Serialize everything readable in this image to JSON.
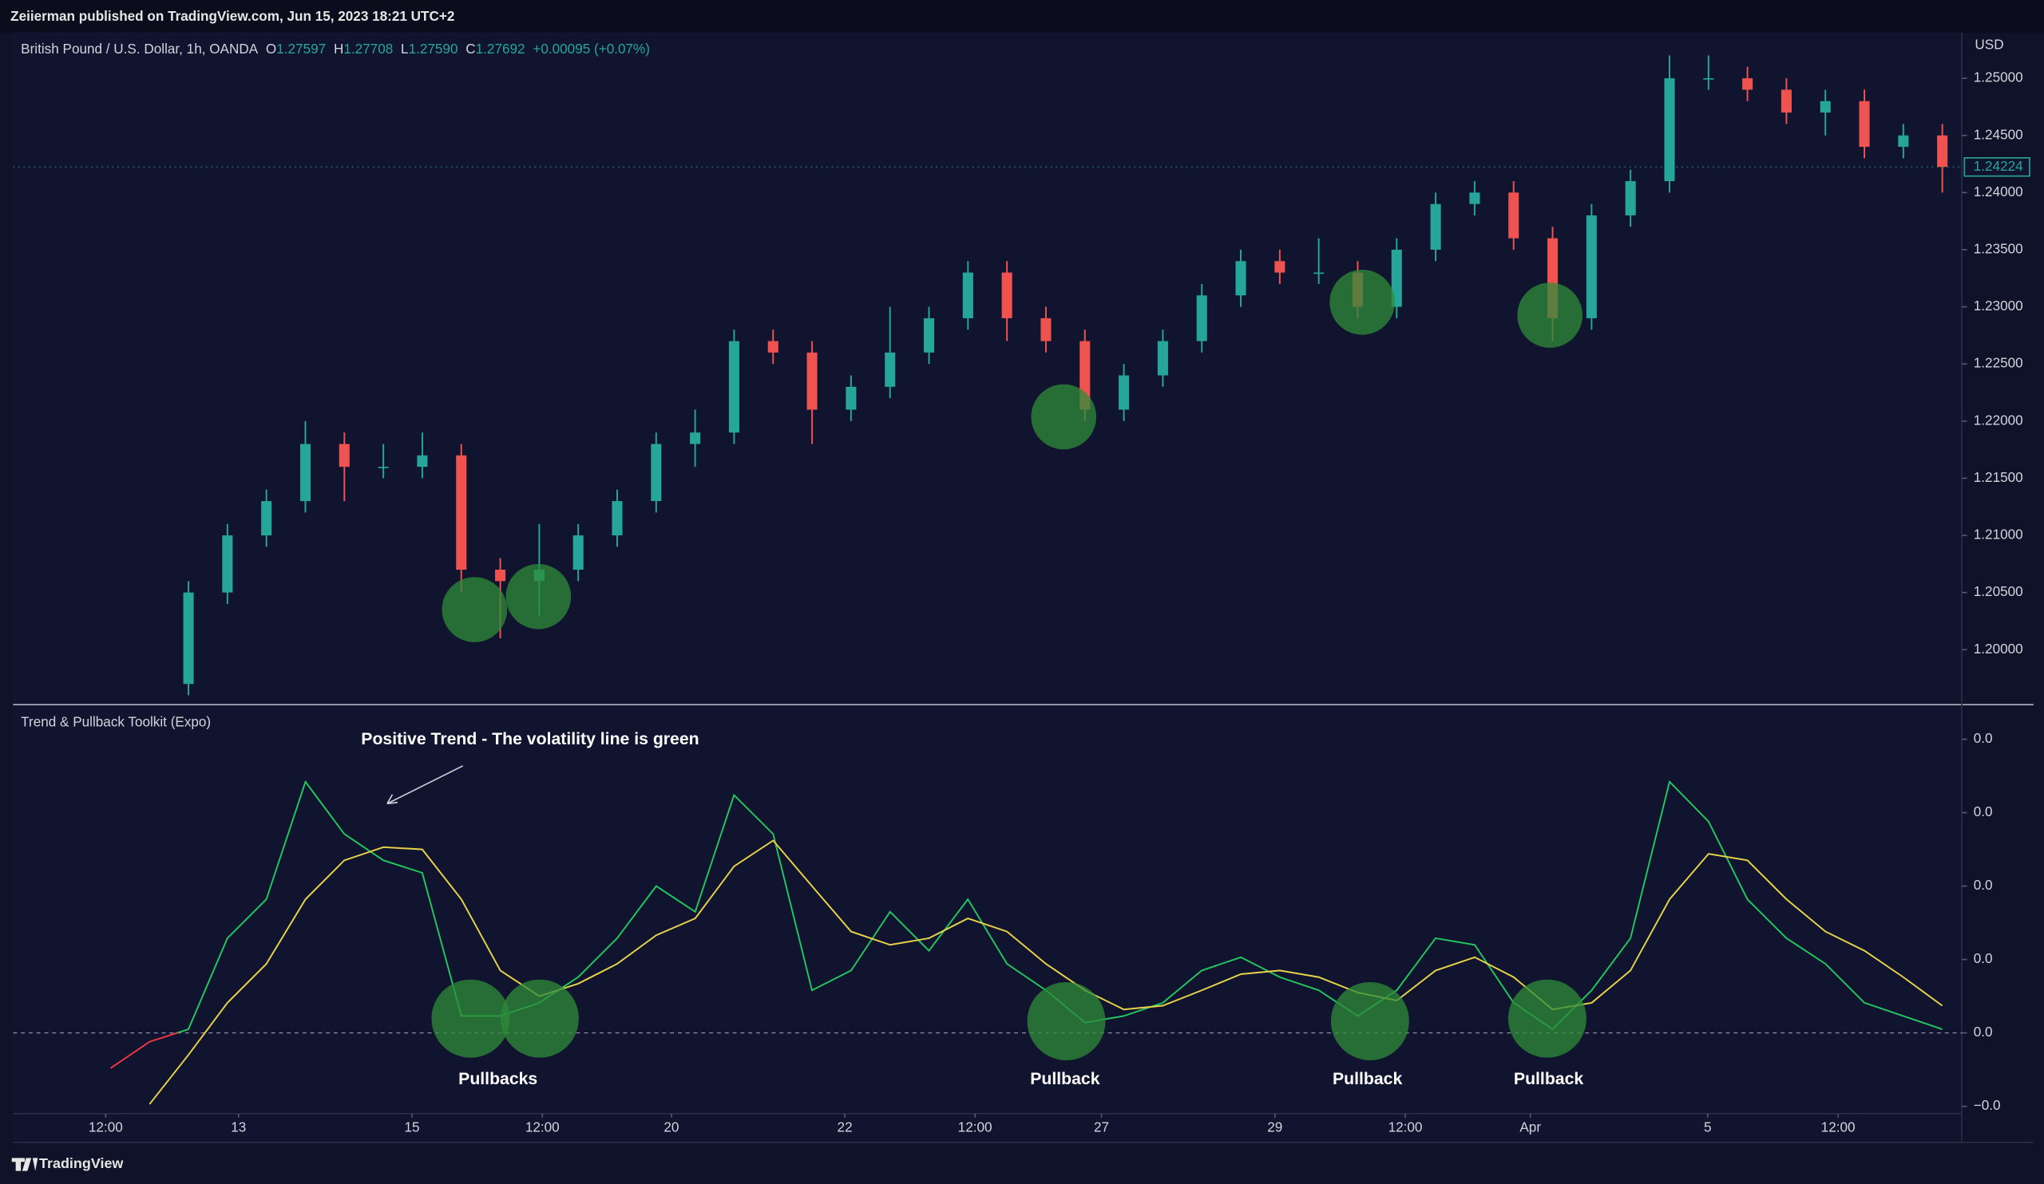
{
  "header": {
    "publisher": "Zeiierman published on TradingView.com, Jun 15, 2023 18:21 UTC+2"
  },
  "legend": {
    "symbol": "British Pound / U.S. Dollar, 1h, OANDA",
    "fields": [
      {
        "key": "O",
        "value": "1.27597"
      },
      {
        "key": "H",
        "value": "1.27708"
      },
      {
        "key": "L",
        "value": "1.27590"
      },
      {
        "key": "C",
        "value": "1.27692"
      }
    ],
    "change": "+0.00095 (+0.07%)"
  },
  "footer": {
    "brand": "TradingView"
  },
  "chart_data": [
    {
      "type": "candlestick",
      "currency": "USD",
      "x": [
        9,
        11,
        13,
        15,
        17,
        19,
        21,
        23,
        25,
        27,
        29,
        31,
        33,
        35,
        37,
        39,
        41,
        43,
        45,
        47,
        49,
        51,
        53,
        55,
        57,
        59,
        61,
        63,
        65,
        67,
        69,
        71,
        73,
        75,
        77,
        79,
        81,
        83,
        85,
        87,
        89,
        91,
        93,
        95,
        97,
        99
      ],
      "open": [
        1.197,
        1.205,
        1.21,
        1.213,
        1.218,
        1.216,
        1.216,
        1.217,
        1.207,
        1.206,
        1.207,
        1.21,
        1.213,
        1.218,
        1.219,
        1.227,
        1.226,
        1.221,
        1.223,
        1.226,
        1.229,
        1.233,
        1.229,
        1.227,
        1.221,
        1.224,
        1.227,
        1.231,
        1.234,
        1.233,
        1.233,
        1.23,
        1.235,
        1.239,
        1.24,
        1.236,
        1.229,
        1.238,
        1.241,
        1.25,
        1.25,
        1.249,
        1.247,
        1.248,
        1.244,
        1.245
      ],
      "high": [
        1.206,
        1.211,
        1.214,
        1.22,
        1.219,
        1.218,
        1.219,
        1.218,
        1.208,
        1.211,
        1.211,
        1.214,
        1.219,
        1.221,
        1.228,
        1.228,
        1.227,
        1.224,
        1.23,
        1.23,
        1.234,
        1.234,
        1.23,
        1.228,
        1.225,
        1.228,
        1.232,
        1.235,
        1.235,
        1.236,
        1.234,
        1.236,
        1.24,
        1.241,
        1.241,
        1.237,
        1.239,
        1.242,
        1.252,
        1.252,
        1.251,
        1.25,
        1.249,
        1.249,
        1.246,
        1.246
      ],
      "low": [
        1.196,
        1.204,
        1.209,
        1.212,
        1.213,
        1.215,
        1.215,
        1.205,
        1.201,
        1.203,
        1.206,
        1.209,
        1.212,
        1.216,
        1.218,
        1.225,
        1.218,
        1.22,
        1.222,
        1.225,
        1.228,
        1.227,
        1.226,
        1.22,
        1.22,
        1.223,
        1.226,
        1.23,
        1.232,
        1.232,
        1.229,
        1.229,
        1.234,
        1.238,
        1.235,
        1.227,
        1.228,
        1.237,
        1.24,
        1.249,
        1.248,
        1.246,
        1.245,
        1.243,
        1.243,
        1.24
      ],
      "close": [
        1.205,
        1.21,
        1.213,
        1.218,
        1.216,
        1.216,
        1.217,
        1.207,
        1.206,
        1.207,
        1.21,
        1.213,
        1.218,
        1.219,
        1.227,
        1.226,
        1.221,
        1.223,
        1.226,
        1.229,
        1.233,
        1.229,
        1.227,
        1.221,
        1.224,
        1.227,
        1.231,
        1.234,
        1.233,
        1.233,
        1.23,
        1.235,
        1.239,
        1.24,
        1.236,
        1.229,
        1.238,
        1.241,
        1.25,
        1.25,
        1.249,
        1.247,
        1.248,
        1.244,
        1.245,
        1.24224
      ],
      "last_label": "1.24224",
      "up_color": "#26a69a",
      "down_color": "#ef5350",
      "xlim": [
        0,
        100
      ],
      "ylim": [
        1.1953,
        1.254
      ],
      "yticks": [
        {
          "value": 1.2,
          "label": "1.20000"
        },
        {
          "value": 1.205,
          "label": "1.20500"
        },
        {
          "value": 1.21,
          "label": "1.21000"
        },
        {
          "value": 1.215,
          "label": "1.21500"
        },
        {
          "value": 1.22,
          "label": "1.22000"
        },
        {
          "value": 1.225,
          "label": "1.22500"
        },
        {
          "value": 1.23,
          "label": "1.23000"
        },
        {
          "value": 1.235,
          "label": "1.23500"
        },
        {
          "value": 1.24,
          "label": "1.24000"
        },
        {
          "value": 1.245,
          "label": "1.24500"
        },
        {
          "value": 1.25,
          "label": "1.25000"
        }
      ]
    },
    {
      "type": "line",
      "title": "Trend & Pullback Toolkit (Expo)",
      "x": [
        5,
        7,
        9,
        11,
        13,
        15,
        17,
        19,
        21,
        23,
        25,
        27,
        29,
        31,
        33,
        35,
        37,
        39,
        41,
        43,
        45,
        47,
        49,
        51,
        53,
        55,
        57,
        59,
        61,
        63,
        65,
        67,
        69,
        71,
        73,
        75,
        77,
        79,
        81,
        83,
        85,
        87,
        89,
        91,
        93,
        95,
        97,
        99
      ],
      "series": [
        {
          "color": "#22c55e",
          "negative_color": "#f23645",
          "values": [
            -0.48,
            -0.12,
            0.05,
            1.29,
            1.82,
            3.42,
            2.71,
            2.35,
            2.18,
            0.23,
            0.23,
            0.41,
            0.76,
            1.29,
            2.0,
            1.65,
            3.24,
            2.71,
            0.58,
            0.85,
            1.65,
            1.12,
            1.82,
            0.94,
            0.58,
            0.14,
            0.23,
            0.41,
            0.85,
            1.03,
            0.76,
            0.58,
            0.23,
            0.58,
            1.29,
            1.2,
            0.41,
            0.05,
            0.58,
            1.29,
            3.42,
            2.88,
            1.82,
            1.29,
            0.94,
            0.41,
            0.23,
            0.05
          ]
        },
        {
          "color": "#e6d34a",
          "values": [
            null,
            -0.97,
            -0.3,
            0.41,
            0.94,
            1.82,
            2.35,
            2.53,
            2.5,
            1.82,
            0.85,
            0.5,
            0.67,
            0.94,
            1.33,
            1.56,
            2.27,
            2.62,
            2.0,
            1.38,
            1.2,
            1.29,
            1.56,
            1.38,
            0.94,
            0.58,
            0.32,
            0.37,
            0.58,
            0.8,
            0.85,
            0.76,
            0.55,
            0.44,
            0.85,
            1.03,
            0.76,
            0.32,
            0.41,
            0.85,
            1.82,
            2.44,
            2.35,
            1.82,
            1.38,
            1.12,
            0.76,
            0.37
          ]
        }
      ],
      "baseline": 0,
      "xlim": [
        0,
        100
      ],
      "ylim": [
        -1.1,
        4.4
      ],
      "yticks": [
        {
          "value": -1,
          "label": "−0.0"
        },
        {
          "value": 0,
          "label": "0.0"
        },
        {
          "value": 1,
          "label": "0.0"
        },
        {
          "value": 2,
          "label": "0.0"
        },
        {
          "value": 3,
          "label": "0.0"
        },
        {
          "value": 4,
          "label": "0.0"
        }
      ],
      "xticks": [
        {
          "value": 4.75,
          "label": "12:00"
        },
        {
          "value": 11.57,
          "label": "13"
        },
        {
          "value": 20.47,
          "label": "15"
        },
        {
          "value": 27.16,
          "label": "12:00"
        },
        {
          "value": 33.78,
          "label": "20"
        },
        {
          "value": 42.68,
          "label": "22"
        },
        {
          "value": 49.36,
          "label": "12:00"
        },
        {
          "value": 55.85,
          "label": "27"
        },
        {
          "value": 64.75,
          "label": "29"
        },
        {
          "value": 71.44,
          "label": "12:00"
        },
        {
          "value": 77.86,
          "label": "Apr"
        },
        {
          "value": 86.96,
          "label": "5"
        },
        {
          "value": 93.65,
          "label": "12:00"
        }
      ],
      "annotations": {
        "trend": "Positive Trend - The volatility line is green",
        "pullbacks": [
          "Pullbacks",
          "Pullback",
          "Pullback",
          "Pullback"
        ]
      }
    }
  ]
}
